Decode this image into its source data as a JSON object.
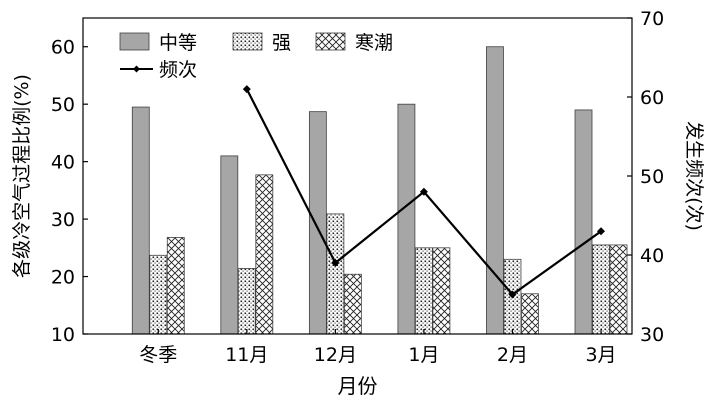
{
  "chart_data": {
    "type": "bar",
    "categories": [
      "冬季",
      "11月",
      "12月",
      "1月",
      "2月",
      "3月"
    ],
    "xlabel": "月份",
    "ylabel": "各级冷空气过程比例(%)",
    "y2label": "发生频次(次)",
    "ylim": [
      10,
      65
    ],
    "y2lim": [
      30,
      70
    ],
    "yticks": [
      10,
      20,
      30,
      40,
      50,
      60
    ],
    "y2ticks": [
      30,
      40,
      50,
      60,
      70
    ],
    "grid": false,
    "legend_position": "top-left",
    "series": [
      {
        "name": "中等",
        "type": "bar",
        "axis": "left",
        "pattern": "solid-gray",
        "color": "#a6a6a6",
        "values": [
          49.5,
          41,
          48.7,
          50,
          60,
          49
        ]
      },
      {
        "name": "强",
        "type": "bar",
        "axis": "left",
        "pattern": "dots",
        "values": [
          23.7,
          21.4,
          30.9,
          25,
          23,
          25.5
        ]
      },
      {
        "name": "寒潮",
        "type": "bar",
        "axis": "left",
        "pattern": "crosshatch",
        "values": [
          26.8,
          null,
          20.4,
          25,
          17,
          25.5
        ]
      },
      {
        "name": "频次",
        "type": "line",
        "axis": "right",
        "color": "#000000",
        "values": [
          null,
          61,
          39,
          48,
          35,
          43
        ]
      }
    ],
    "note_11月_crosshatch_bar": 37.7
  }
}
